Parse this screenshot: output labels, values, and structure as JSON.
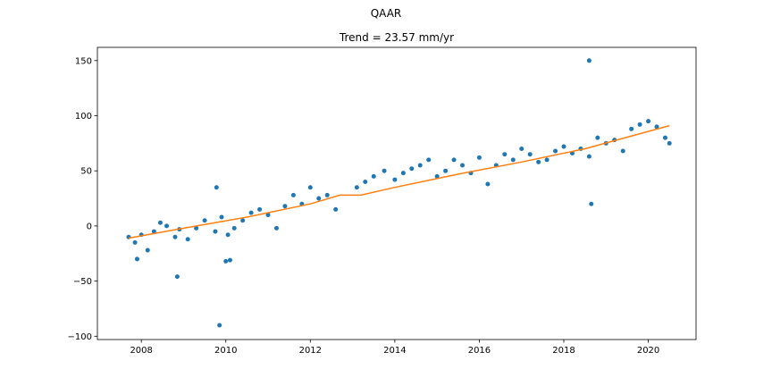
{
  "suptitle": "QAAR",
  "chart_data": {
    "type": "scatter",
    "title": "Trend = 23.57 mm/yr",
    "xlabel": "",
    "ylabel": "",
    "xlim": [
      2006.96,
      2021.13
    ],
    "ylim": [
      -103,
      162
    ],
    "x_ticks": [
      2008,
      2010,
      2012,
      2014,
      2016,
      2018,
      2020
    ],
    "y_ticks": [
      -100,
      -50,
      0,
      50,
      100,
      150
    ],
    "grid": false,
    "legend": "none",
    "colors": {
      "points": "#1f77b4",
      "trend": "#ff7f0e"
    },
    "series": [
      {
        "kind": "scatter",
        "x": [
          2007.7,
          2007.85,
          2008.0,
          2008.15,
          2008.3,
          2008.45,
          2008.6,
          2008.8,
          2008.9,
          2009.1,
          2009.3,
          2009.5,
          2009.75,
          2009.9,
          2010.05,
          2010.2,
          2010.4,
          2010.6,
          2010.8,
          2011.0,
          2011.2,
          2011.4,
          2011.6,
          2011.8,
          2012.0,
          2012.2,
          2012.4,
          2012.6,
          2013.1,
          2013.3,
          2013.5,
          2013.75,
          2014.0,
          2014.2,
          2014.4,
          2014.6,
          2014.8,
          2015.0,
          2015.2,
          2015.4,
          2015.6,
          2015.8,
          2016.0,
          2016.2,
          2016.4,
          2016.6,
          2016.8,
          2017.0,
          2017.2,
          2017.4,
          2017.6,
          2017.8,
          2018.0,
          2018.2,
          2018.4,
          2018.6,
          2018.8,
          2019.0,
          2019.2,
          2019.4,
          2019.6,
          2019.8,
          2020.0,
          2020.2,
          2020.4,
          2020.5
        ],
        "y": [
          -10,
          -15,
          -8,
          -22,
          -5,
          3,
          0,
          -10,
          -3,
          -12,
          -2,
          5,
          -5,
          8,
          -8,
          -2,
          5,
          12,
          15,
          10,
          -2,
          18,
          28,
          20,
          35,
          25,
          28,
          15,
          35,
          40,
          45,
          50,
          42,
          48,
          52,
          55,
          60,
          45,
          50,
          60,
          55,
          48,
          62,
          38,
          55,
          65,
          60,
          70,
          65,
          58,
          60,
          68,
          72,
          66,
          70,
          63,
          80,
          75,
          78,
          68,
          88,
          92,
          95,
          90,
          80,
          75
        ]
      },
      {
        "kind": "scatter-outliers",
        "x": [
          2009.85,
          2007.9,
          2010.0,
          2008.85,
          2018.6,
          2018.65,
          2010.1,
          2009.78
        ],
        "y": [
          -90,
          -30,
          -32,
          -46,
          150,
          20,
          -31,
          35
        ]
      },
      {
        "kind": "trend",
        "x": [
          2007.7,
          2009.0,
          2010.5,
          2012.0,
          2012.7,
          2013.2,
          2014.0,
          2015.5,
          2017.0,
          2018.5,
          2020.5
        ],
        "y": [
          -11,
          -2,
          8,
          20,
          28,
          28,
          35,
          47,
          58,
          70,
          91
        ]
      }
    ]
  }
}
